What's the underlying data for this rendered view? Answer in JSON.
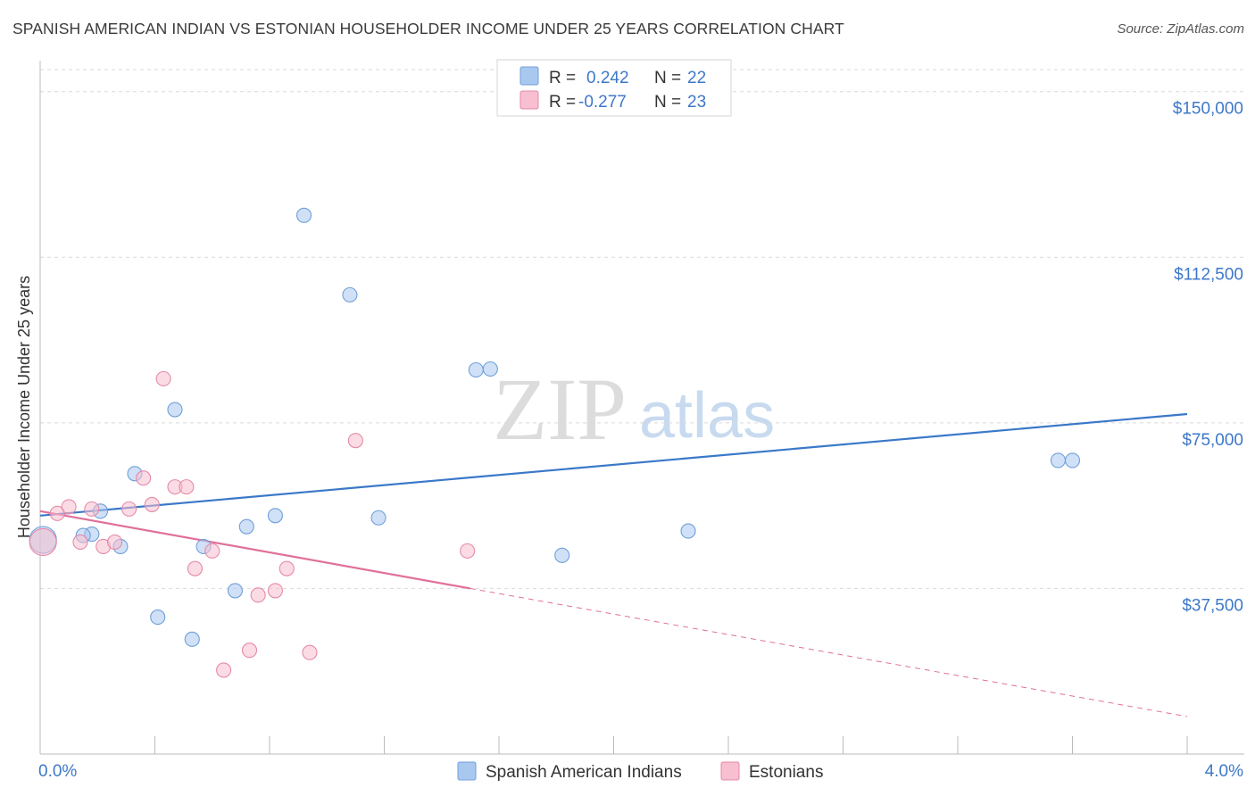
{
  "title": "SPANISH AMERICAN INDIAN VS ESTONIAN HOUSEHOLDER INCOME UNDER 25 YEARS CORRELATION CHART",
  "source": "Source: ZipAtlas.com",
  "watermark": {
    "zip": "ZIP",
    "atlas": "atlas"
  },
  "legend": {
    "rows": [
      {
        "r_label": "R =",
        "r_value": "0.242",
        "n_label": "N =",
        "n_value": "22",
        "color": "#a9c8f0",
        "edge": "#6f9fd8"
      },
      {
        "r_label": "R =",
        "r_value": "-0.277",
        "n_label": "N =",
        "n_value": "23",
        "color": "#f7bfd0",
        "edge": "#e58aa8"
      }
    ]
  },
  "bottom_legend": [
    {
      "label": "Spanish American Indians",
      "color": "#a9c8f0",
      "edge": "#6f9fd8"
    },
    {
      "label": "Estonians",
      "color": "#f7bfd0",
      "edge": "#e58aa8"
    }
  ],
  "chart_data": {
    "type": "scatter",
    "title": "SPANISH AMERICAN INDIAN VS ESTONIAN HOUSEHOLDER INCOME UNDER 25 YEARS CORRELATION CHART",
    "xlabel": "",
    "ylabel": "Householder Income Under 25 years",
    "xlim": [
      0.0,
      4.0
    ],
    "ylim": [
      0,
      155000
    ],
    "x_tick_labels": [
      "0.0%",
      "4.0%"
    ],
    "y_ticks": [
      37500,
      75000,
      112500,
      150000
    ],
    "y_tick_labels": [
      "$37,500",
      "$75,000",
      "$112,500",
      "$150,000"
    ],
    "grid": true,
    "legend_position": "top-center",
    "series": [
      {
        "name": "Spanish American Indians",
        "color": "#3a78c9",
        "fill": "#a9c8f0",
        "edge": "#6f9fd8",
        "points": [
          {
            "x": 0.01,
            "y": 48500,
            "size": "large"
          },
          {
            "x": 0.18,
            "y": 49800
          },
          {
            "x": 0.15,
            "y": 49500
          },
          {
            "x": 0.21,
            "y": 55000
          },
          {
            "x": 0.28,
            "y": 47000
          },
          {
            "x": 0.33,
            "y": 63500
          },
          {
            "x": 0.41,
            "y": 31000
          },
          {
            "x": 0.47,
            "y": 78000
          },
          {
            "x": 0.53,
            "y": 26000
          },
          {
            "x": 0.57,
            "y": 47000
          },
          {
            "x": 0.68,
            "y": 37000
          },
          {
            "x": 0.72,
            "y": 51500
          },
          {
            "x": 0.82,
            "y": 54000
          },
          {
            "x": 0.92,
            "y": 122000
          },
          {
            "x": 1.08,
            "y": 104000
          },
          {
            "x": 1.18,
            "y": 53500
          },
          {
            "x": 1.52,
            "y": 87000
          },
          {
            "x": 1.57,
            "y": 87200
          },
          {
            "x": 1.82,
            "y": 45000
          },
          {
            "x": 2.26,
            "y": 50500
          },
          {
            "x": 3.55,
            "y": 66500
          },
          {
            "x": 3.6,
            "y": 66500
          }
        ],
        "trend": {
          "x0": 0.0,
          "y0": 54000,
          "x1": 4.0,
          "y1": 77000
        }
      },
      {
        "name": "Estonians",
        "color": "#e0709a",
        "fill": "#f7bfd0",
        "edge": "#e58aa8",
        "points": [
          {
            "x": 0.01,
            "y": 48000,
            "size": "large"
          },
          {
            "x": 0.06,
            "y": 54500
          },
          {
            "x": 0.1,
            "y": 56000
          },
          {
            "x": 0.14,
            "y": 48000
          },
          {
            "x": 0.18,
            "y": 55500
          },
          {
            "x": 0.22,
            "y": 47000
          },
          {
            "x": 0.26,
            "y": 48000
          },
          {
            "x": 0.31,
            "y": 55500
          },
          {
            "x": 0.36,
            "y": 62500
          },
          {
            "x": 0.39,
            "y": 56500
          },
          {
            "x": 0.43,
            "y": 85000
          },
          {
            "x": 0.47,
            "y": 60500
          },
          {
            "x": 0.51,
            "y": 60500
          },
          {
            "x": 0.54,
            "y": 42000
          },
          {
            "x": 0.6,
            "y": 46000
          },
          {
            "x": 0.64,
            "y": 19000
          },
          {
            "x": 0.73,
            "y": 23500
          },
          {
            "x": 0.76,
            "y": 36000
          },
          {
            "x": 0.82,
            "y": 37000
          },
          {
            "x": 0.86,
            "y": 42000
          },
          {
            "x": 0.94,
            "y": 23000
          },
          {
            "x": 1.1,
            "y": 71000
          },
          {
            "x": 1.49,
            "y": 46000
          }
        ],
        "trend": {
          "x0": 0.0,
          "y0": 55000,
          "x1": 1.5,
          "y1": 37500
        },
        "trend_extension": {
          "x0": 1.5,
          "y0": 37500,
          "x1": 4.0,
          "y1": 8500
        }
      }
    ]
  }
}
